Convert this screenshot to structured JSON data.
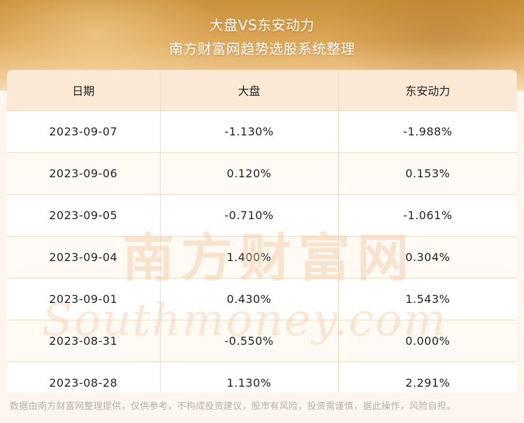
{
  "header": {
    "title": "大盘VS东安动力",
    "subtitle": "南方财富网趋势选股系统整理"
  },
  "table": {
    "columns": [
      "日期",
      "大盘",
      "东安动力"
    ],
    "rows": [
      [
        "2023-09-07",
        "-1.130%",
        "-1.988%"
      ],
      [
        "2023-09-06",
        "0.120%",
        "0.153%"
      ],
      [
        "2023-09-05",
        "-0.710%",
        "-1.061%"
      ],
      [
        "2023-09-04",
        "1.400%",
        "0.304%"
      ],
      [
        "2023-09-01",
        "0.430%",
        "1.543%"
      ],
      [
        "2023-08-31",
        "-0.550%",
        "0.000%"
      ],
      [
        "2023-08-28",
        "1.130%",
        "2.291%"
      ]
    ]
  },
  "watermark": {
    "cn": "南方财富网",
    "en": "Southmoney.com"
  },
  "footer": {
    "disclaimer": "数据由南方财富网整理提供，仅供参考，不构成投资建议，股市有风险，投资需谨慎，据此操作，风险自担。"
  },
  "colors": {
    "banner_top": "#c98f38",
    "header_row": "#fbe9d6",
    "watermark": "#f0c9a0"
  }
}
